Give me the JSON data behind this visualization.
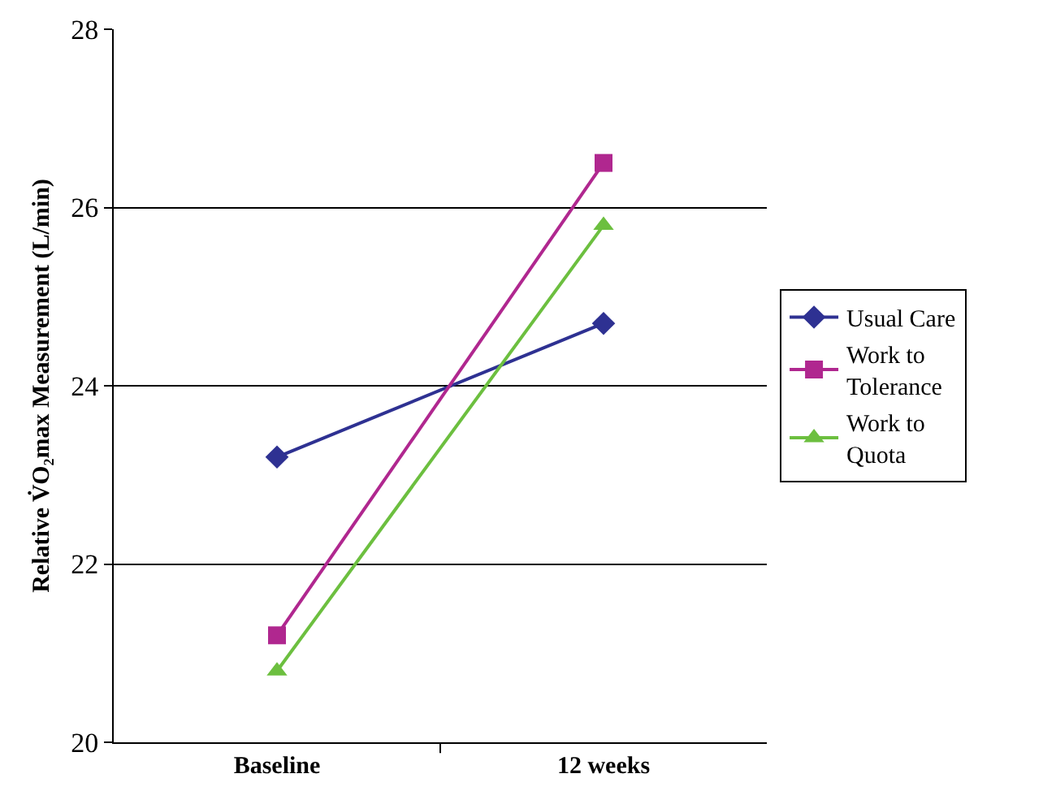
{
  "chart_data": {
    "type": "line",
    "ylabel": "Relative V̇O₂max Measurement (L/min)",
    "categories": [
      "Baseline",
      "12 weeks"
    ],
    "series": [
      {
        "name": "Usual Care",
        "color": "#2e3192",
        "marker": "diamond",
        "values": [
          23.2,
          24.7
        ]
      },
      {
        "name": "Work to Tolerance",
        "color": "#b0278f",
        "marker": "square",
        "values": [
          21.2,
          26.5
        ]
      },
      {
        "name": "Work to Quota",
        "color": "#6cbf3f",
        "marker": "triangle",
        "values": [
          20.8,
          25.8
        ]
      }
    ],
    "ylim": [
      20,
      28
    ],
    "yticks": [
      20,
      22,
      24,
      26,
      28
    ],
    "grid": "y",
    "legend": "right",
    "line_style": "solid"
  }
}
